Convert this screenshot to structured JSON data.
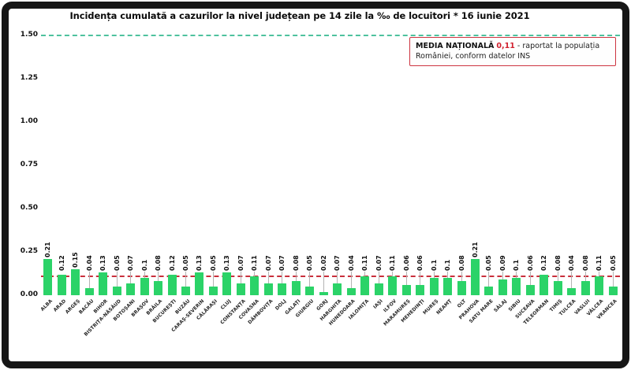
{
  "note_box": {
    "label": "MEDIA NAȚIONALĂ",
    "value": "0,11",
    "description": "- raportat la populația României, conform datelor INS"
  },
  "chart_data": {
    "type": "bar",
    "title": "Incidența cumulată a cazurilor la nivel județean pe 14 zile la ‰ de locuitori *  16 iunie 2021",
    "categories": [
      "ALBA",
      "ARAD",
      "ARGEȘ",
      "BACĂU",
      "BIHOR",
      "BISTRIȚA-NĂSĂUD",
      "BOTOȘANI",
      "BRAȘOV",
      "BRĂILA",
      "BUCUREȘTI",
      "BUZĂU",
      "CARAȘ-SEVERIN",
      "CĂLĂRAȘI",
      "CLUJ",
      "CONSTANȚA",
      "COVASNA",
      "DÂMBOVIȚA",
      "DOLJ",
      "GALAȚI",
      "GIURGIU",
      "GORJ",
      "HARGHITA",
      "HUNEDOARA",
      "IALOMIȚA",
      "IAȘI",
      "ILFOV",
      "MARAMUREȘ",
      "MEHEDINȚI",
      "MUREȘ",
      "NEAMȚ",
      "OLT",
      "PRAHOVA",
      "SATU MARE",
      "SĂLAJ",
      "SIBIU",
      "SUCEAVA",
      "TELEORMAN",
      "TIMIȘ",
      "TULCEA",
      "VASLUI",
      "VÂLCEA",
      "VRANCEA"
    ],
    "values": [
      0.21,
      0.12,
      0.15,
      0.04,
      0.13,
      0.05,
      0.07,
      0.1,
      0.08,
      0.12,
      0.05,
      0.13,
      0.05,
      0.13,
      0.07,
      0.11,
      0.07,
      0.07,
      0.08,
      0.05,
      0.02,
      0.07,
      0.04,
      0.11,
      0.07,
      0.11,
      0.06,
      0.06,
      0.1,
      0.1,
      0.08,
      0.21,
      0.05,
      0.09,
      0.1,
      0.06,
      0.12,
      0.08,
      0.04,
      0.08,
      0.11,
      0.05
    ],
    "xlabel": "",
    "ylabel": "",
    "ylim": [
      0,
      1.5
    ],
    "yticks": [
      "0.00",
      "0.25",
      "0.50",
      "0.75",
      "1.00",
      "1.25",
      "1.50"
    ],
    "grid": false,
    "legend_position": "top-right",
    "bar_color": "#2bd368",
    "reference_lines": [
      {
        "name": "media-nationala",
        "value": 0.11,
        "color": "#c92f3b",
        "style": "dashed"
      },
      {
        "name": "prag-superior",
        "value": 1.5,
        "color": "#4ec29e",
        "style": "dashed"
      }
    ]
  }
}
